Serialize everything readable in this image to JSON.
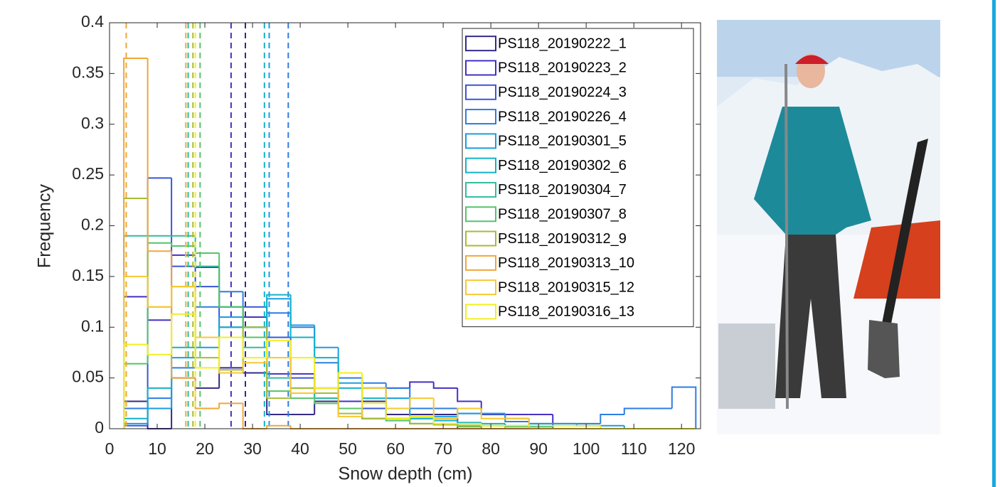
{
  "chart_data": {
    "type": "histogram",
    "xlabel": "Snow depth (cm)",
    "ylabel": "Frequency",
    "xlim": [
      0,
      124
    ],
    "ylim": [
      0,
      0.4
    ],
    "xticks": [
      0,
      10,
      20,
      30,
      40,
      50,
      60,
      70,
      80,
      90,
      100,
      110,
      120
    ],
    "yticks": [
      0,
      0.05,
      0.1,
      0.15,
      0.2,
      0.25,
      0.3,
      0.35,
      0.4
    ],
    "bins": [
      3,
      8,
      13,
      18,
      23,
      28,
      33,
      38,
      43,
      48,
      53,
      58,
      63,
      68,
      73,
      78,
      83,
      88,
      93,
      98,
      103,
      108,
      113,
      118,
      123
    ],
    "legend": "upper right",
    "series": [
      {
        "name": "PS118_20190222_1",
        "color": "#352a87",
        "mean": 28.5,
        "values": [
          0.027,
          0,
          0.05,
          0.04,
          0.06,
          0.055,
          0.014,
          0.014,
          0.027,
          0.027,
          0.027,
          0.014,
          0.014,
          0.014,
          0,
          0,
          0,
          0,
          0,
          0,
          0,
          0,
          0,
          0
        ]
      },
      {
        "name": "PS118_20190223_2",
        "color": "#4530c4",
        "mean": 25.5,
        "values": [
          0.13,
          0.107,
          0.171,
          0.159,
          0.12,
          0.11,
          0.054,
          0.054,
          0.04,
          0.027,
          0.04,
          0.04,
          0.046,
          0.04,
          0.027,
          0.014,
          0.014,
          0.014,
          0,
          0,
          0,
          0,
          0,
          0
        ]
      },
      {
        "name": "PS118_20190224_3",
        "color": "#3a56d8",
        "mean": 16,
        "values": [
          0.003,
          0.247,
          0.16,
          0.14,
          0.1,
          0.12,
          0.09,
          0.05,
          0.03,
          0.02,
          0.02,
          0.01,
          0.01,
          0.01,
          0.005,
          0,
          0,
          0,
          0,
          0,
          0,
          0,
          0,
          0
        ]
      },
      {
        "name": "PS118_20190226_4",
        "color": "#2e7de2",
        "mean": 37.5,
        "values": [
          0.02,
          0.03,
          0.06,
          0.12,
          0.135,
          0.1,
          0.114,
          0.1,
          0.065,
          0.05,
          0.045,
          0.04,
          0.02,
          0.02,
          0.015,
          0.015,
          0.007,
          0.005,
          0.005,
          0.005,
          0.014,
          0.02,
          0.02,
          0.041
        ]
      },
      {
        "name": "PS118_20190301_5",
        "color": "#1a9ee0",
        "mean": 33.5,
        "values": [
          0.005,
          0.02,
          0.07,
          0.08,
          0.11,
          0.1,
          0.128,
          0.102,
          0.08,
          0.045,
          0.04,
          0.03,
          0.012,
          0.012,
          0.015,
          0.015,
          0.01,
          0.005,
          0.005,
          0.003,
          0.003,
          0,
          0,
          0
        ]
      },
      {
        "name": "PS118_20190302_6",
        "color": "#14b2c8",
        "mean": 32.5,
        "values": [
          0.01,
          0.04,
          0.08,
          0.09,
          0.1,
          0.1,
          0.132,
          0.09,
          0.07,
          0.04,
          0.03,
          0.02,
          0.01,
          0.008,
          0.006,
          0.005,
          0.003,
          0.002,
          0,
          0,
          0,
          0,
          0,
          0
        ]
      },
      {
        "name": "PS118_20190304_7",
        "color": "#33bba0",
        "mean": 16.5,
        "values": [
          0.19,
          0.19,
          0.19,
          0.16,
          0.12,
          0.08,
          0.05,
          0.04,
          0.03,
          0.02,
          0.01,
          0.01,
          0.005,
          0.004,
          0.003,
          0.003,
          0.002,
          0,
          0,
          0,
          0,
          0,
          0,
          0
        ]
      },
      {
        "name": "PS118_20190307_8",
        "color": "#55c46a",
        "mean": 19,
        "values": [
          0.064,
          0.183,
          0.18,
          0.173,
          0.12,
          0.09,
          0.037,
          0.03,
          0.025,
          0.02,
          0.01,
          0.008,
          0.005,
          0.004,
          0.002,
          0,
          0,
          0,
          0,
          0,
          0,
          0,
          0,
          0
        ]
      },
      {
        "name": "PS118_20190312_9",
        "color": "#a9bb35",
        "mean": 17.5,
        "values": [
          0.227,
          0.12,
          0.14,
          0.07,
          0.058,
          0.1,
          0.03,
          0.04,
          0.035,
          0.015,
          0.01,
          0.01,
          0.005,
          0.004,
          0.003,
          0.003,
          0,
          0,
          0,
          0,
          0,
          0,
          0,
          0
        ]
      },
      {
        "name": "PS118_20190313_10",
        "color": "#f0a73a",
        "mean": 3.5,
        "values": [
          0.365,
          0.175,
          0.05,
          0.02,
          0.025,
          0,
          0.003,
          0,
          0,
          0,
          0,
          0,
          0,
          0,
          0,
          0,
          0,
          0,
          0,
          0,
          0,
          0,
          0,
          0
        ]
      },
      {
        "name": "PS118_20190315_12",
        "color": "#f8c830",
        "mean": 16,
        "values": [
          0.15,
          0.12,
          0.14,
          0.09,
          0.055,
          0.065,
          0.07,
          0.035,
          0.04,
          0.012,
          0.04,
          0.02,
          0.03,
          0.01,
          0.02,
          0.01,
          0.01,
          0,
          0,
          0,
          0,
          0,
          0,
          0
        ]
      },
      {
        "name": "PS118_20190316_13",
        "color": "#f2ef1e",
        "mean": 18,
        "values": [
          0.083,
          0.073,
          0.113,
          0.06,
          0.09,
          0.07,
          0.087,
          0.07,
          0.04,
          0.055,
          0.025,
          0.01,
          0.012,
          0.005,
          0.005,
          0.003,
          0.003,
          0.003,
          0.003,
          0.003,
          0,
          0,
          0,
          0
        ]
      }
    ]
  }
}
